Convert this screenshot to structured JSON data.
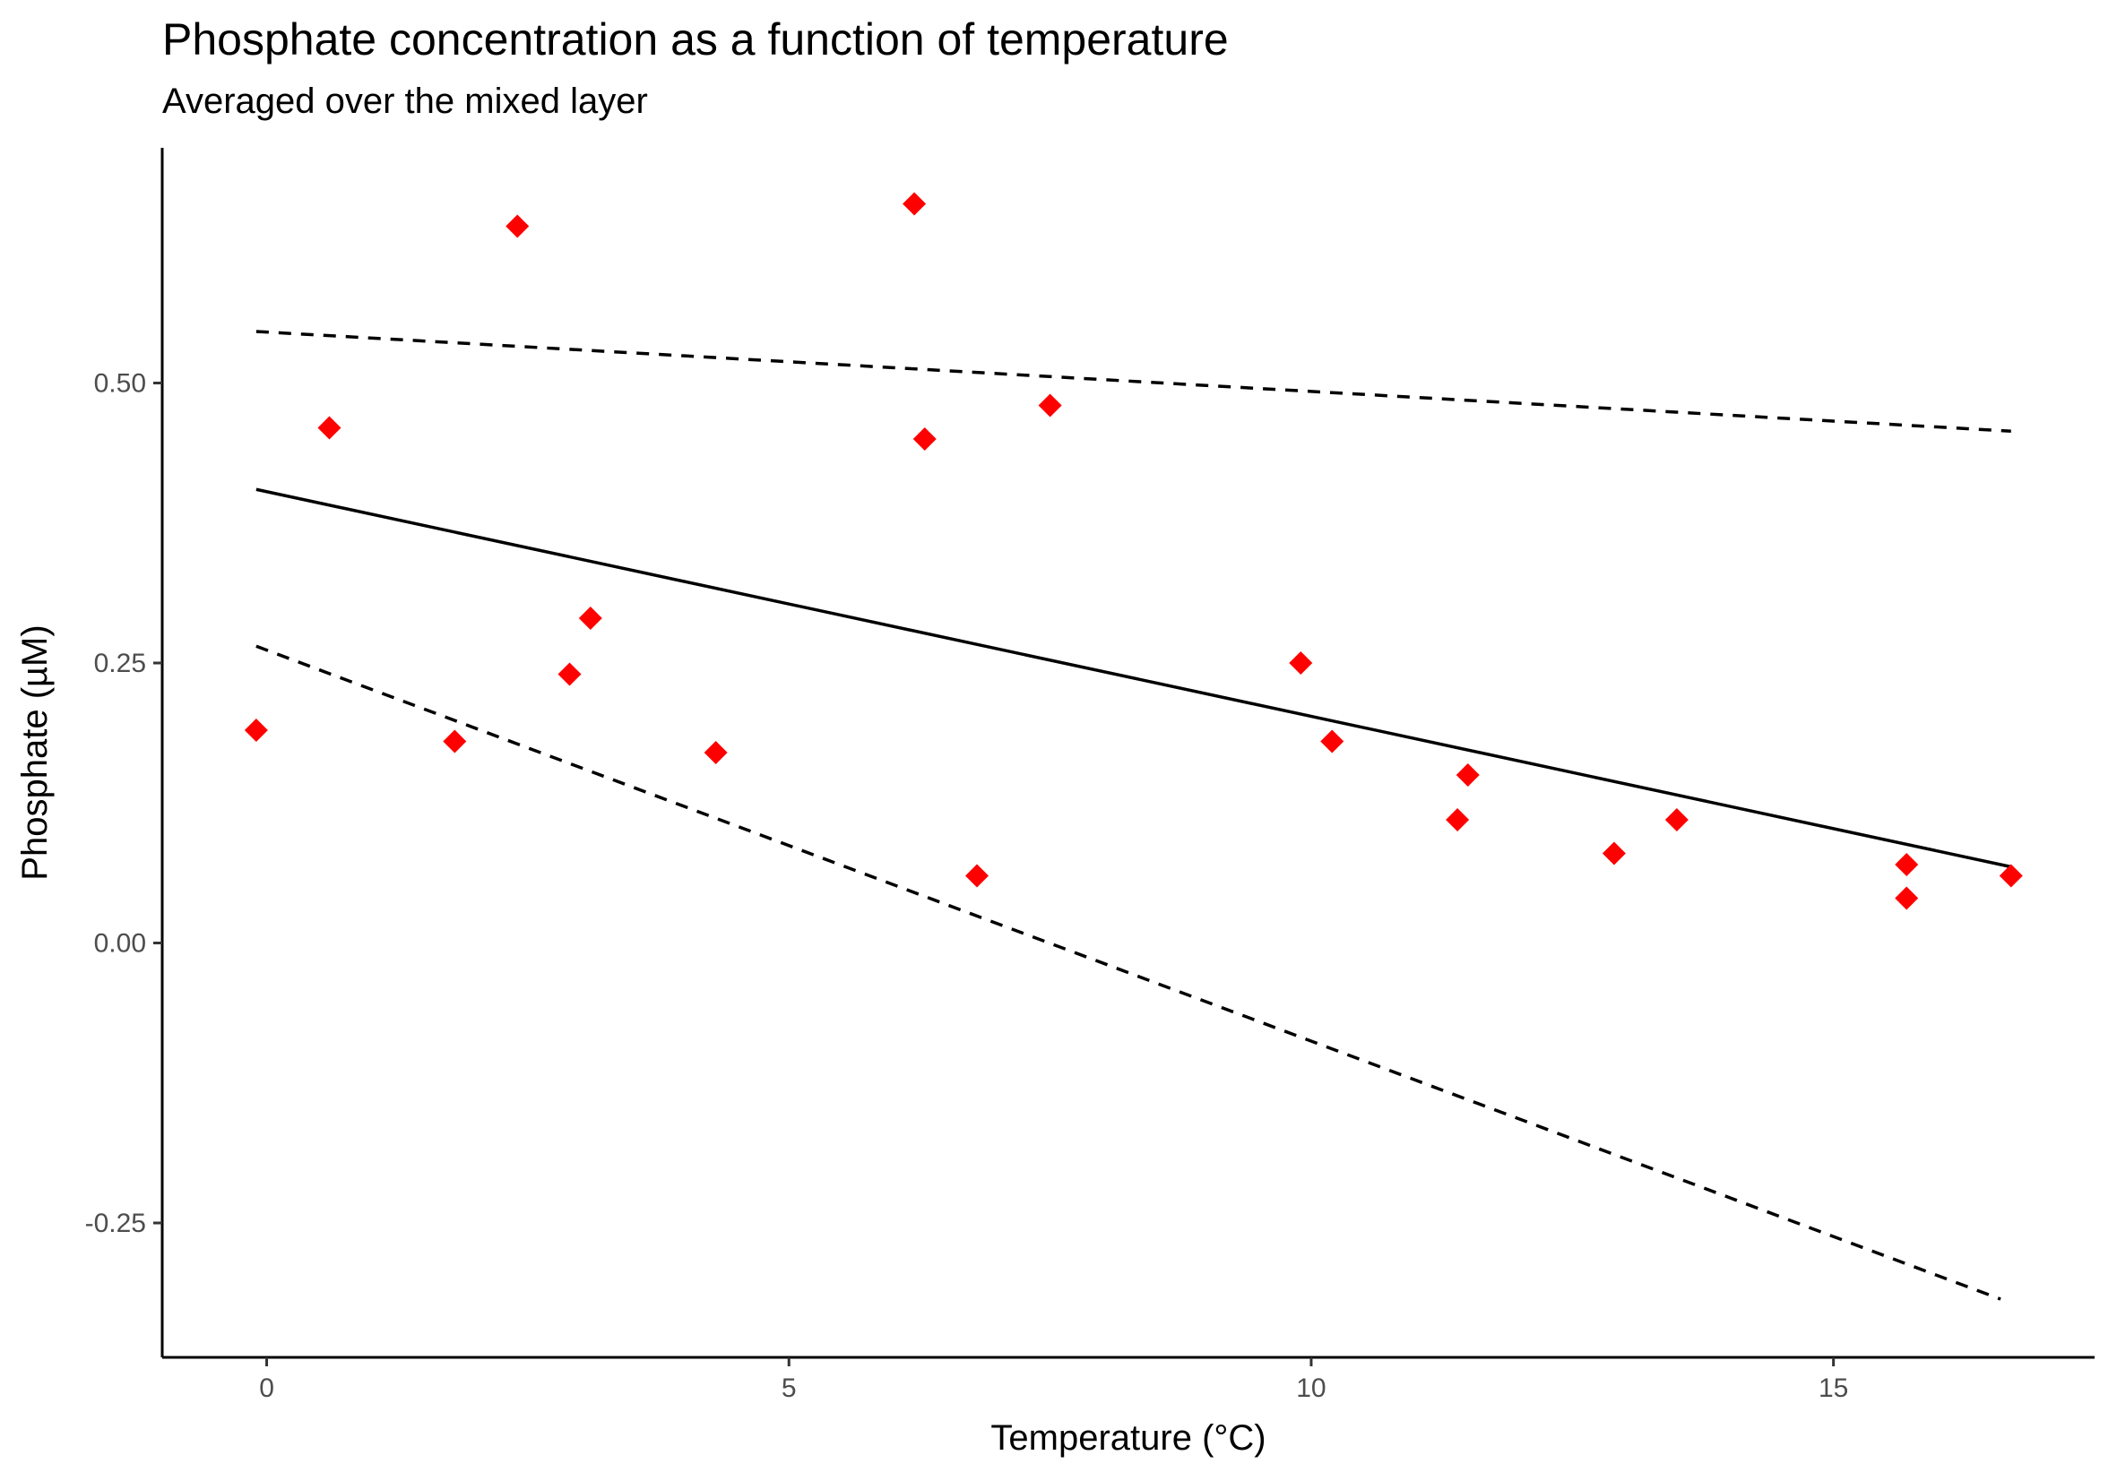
{
  "chart_data": {
    "type": "scatter",
    "title": "Phosphate concentration as a function of temperature",
    "subtitle": "Averaged over the mixed layer",
    "xlabel": "Temperature (°C)",
    "ylabel": "Phosphate (µM)",
    "xlim": [
      -1.0,
      17.5
    ],
    "ylim": [
      -0.37,
      0.71
    ],
    "x_ticks": [
      0,
      5,
      10,
      15
    ],
    "x_tick_labels": [
      "0",
      "5",
      "10",
      "15"
    ],
    "y_ticks": [
      -0.25,
      0.0,
      0.25,
      0.5
    ],
    "y_tick_labels": [
      "-0.25",
      "0.00",
      "0.25",
      "0.50"
    ],
    "grid": false,
    "points": {
      "marker": "diamond",
      "color": "#ff0000",
      "x": [
        -0.1,
        0.6,
        1.8,
        2.4,
        2.9,
        3.1,
        4.3,
        6.2,
        6.3,
        6.8,
        7.5,
        9.9,
        10.2,
        11.4,
        11.5,
        12.9,
        13.5,
        15.7,
        15.7,
        16.7
      ],
      "y": [
        0.19,
        0.46,
        0.18,
        0.64,
        0.24,
        0.29,
        0.17,
        0.66,
        0.45,
        0.06,
        0.48,
        0.25,
        0.18,
        0.11,
        0.15,
        0.08,
        0.11,
        0.07,
        0.04,
        0.06
      ]
    },
    "lines": [
      {
        "style": "solid",
        "color": "#000000",
        "x": [
          -0.1,
          16.7
        ],
        "y": [
          0.405,
          0.068
        ]
      },
      {
        "style": "dashed",
        "color": "#000000",
        "x": [
          -0.1,
          16.7
        ],
        "y": [
          0.546,
          0.457
        ]
      },
      {
        "style": "dashed",
        "color": "#000000",
        "x": [
          -0.1,
          16.6
        ],
        "y": [
          0.265,
          -0.318
        ]
      }
    ]
  }
}
